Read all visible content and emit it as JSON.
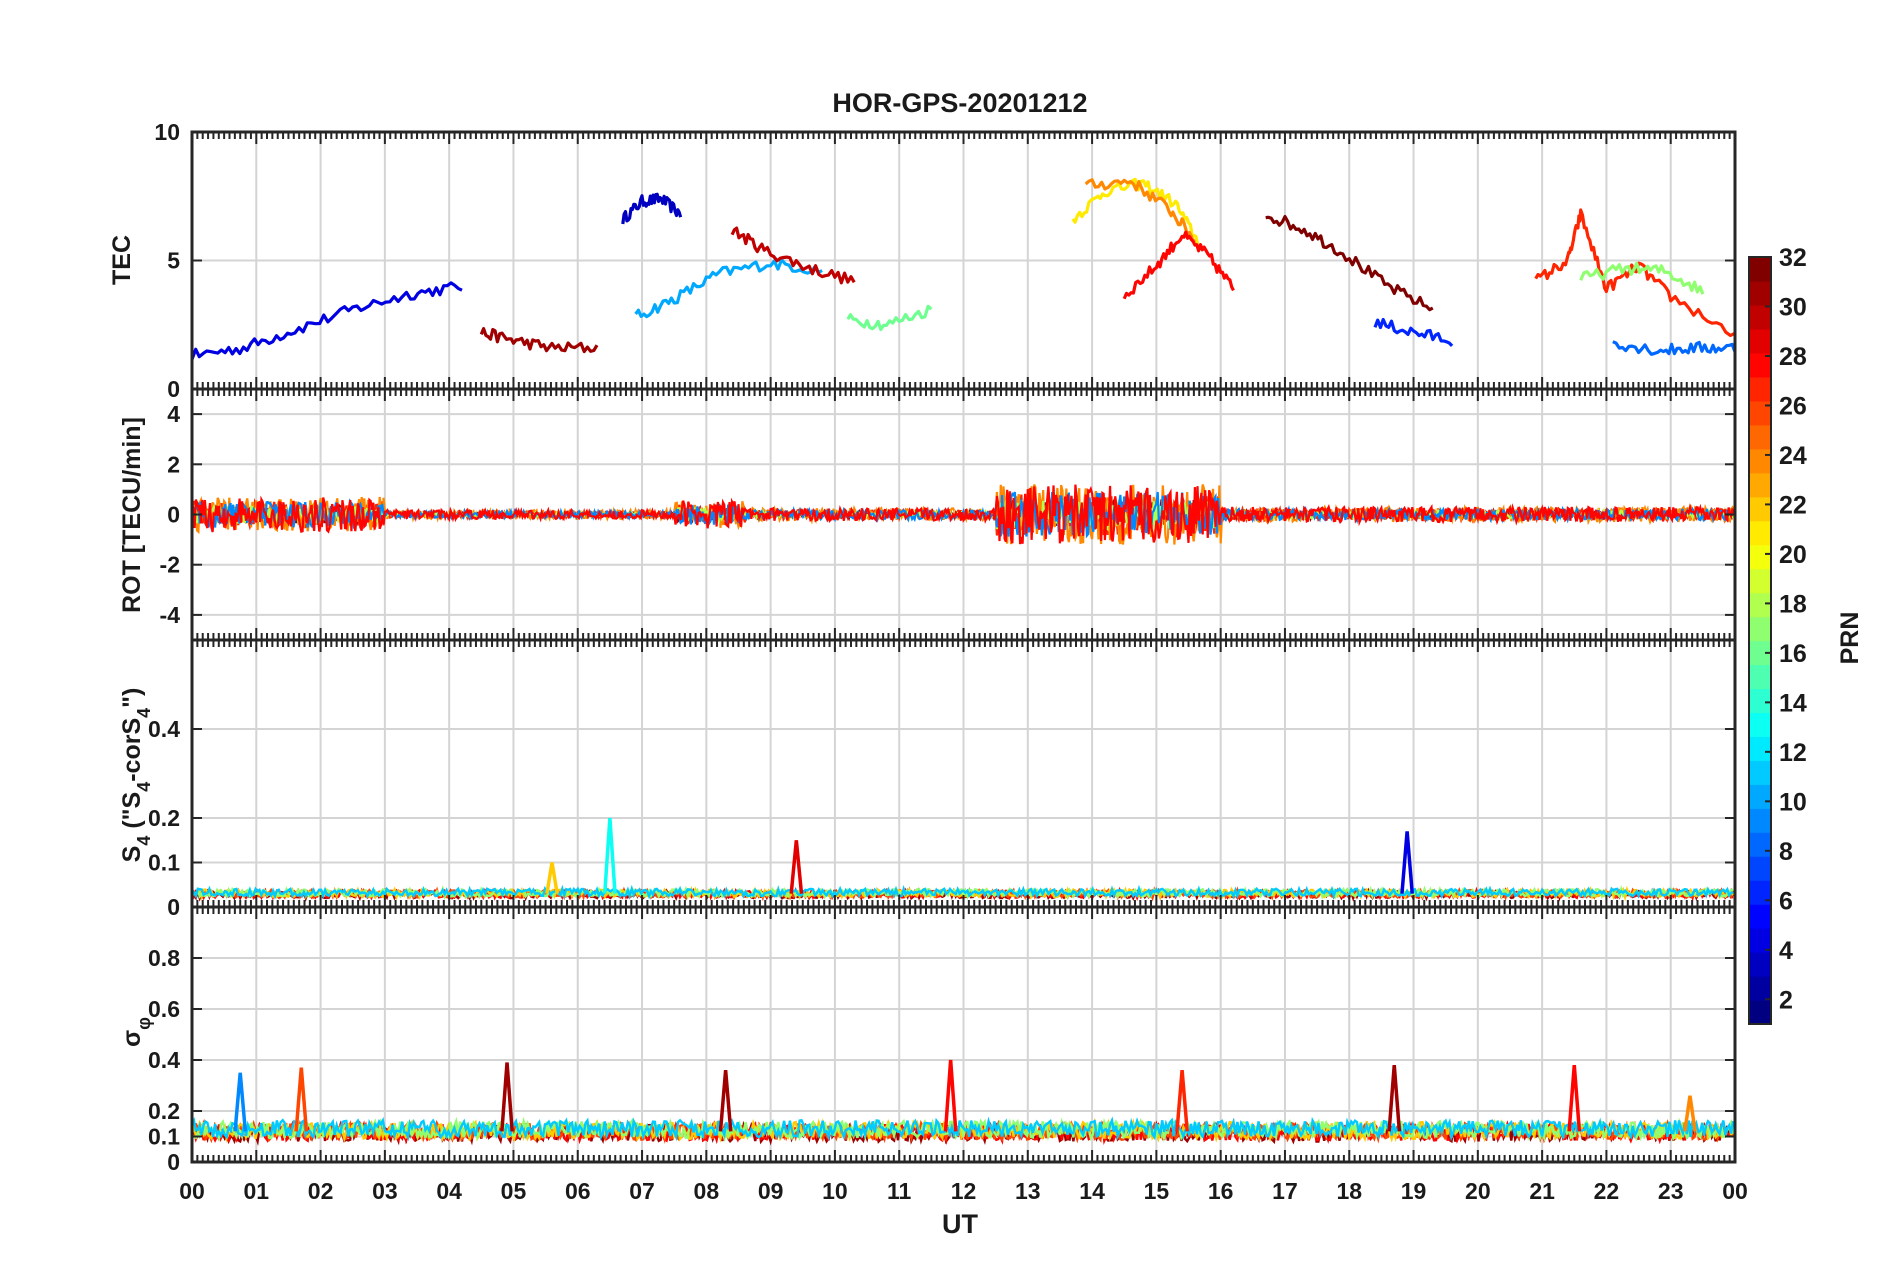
{
  "chart_data": [
    {
      "type": "line",
      "title": "HOR-GPS-20201212",
      "ylabel": "TEC",
      "ylim": [
        0,
        10
      ],
      "yticks": [
        "0",
        "5",
        "10"
      ],
      "grid": true,
      "approx_series": [
        {
          "prn": 3,
          "x": [
            6.7,
            7.0,
            7.3,
            7.6
          ],
          "y": [
            6.6,
            7.3,
            7.4,
            6.8
          ]
        },
        {
          "prn": 4,
          "x": [
            0.0,
            0.8,
            1.6,
            2.5,
            3.4,
            4.2
          ],
          "y": [
            1.3,
            1.6,
            2.3,
            3.1,
            3.7,
            4.0
          ]
        },
        {
          "prn": 10,
          "x": [
            6.9,
            7.5,
            8.2,
            9.0,
            9.8
          ],
          "y": [
            2.8,
            3.5,
            4.5,
            4.9,
            4.6
          ]
        },
        {
          "prn": 31,
          "x": [
            4.5,
            5.0,
            5.6,
            6.3
          ],
          "y": [
            2.2,
            1.9,
            1.6,
            1.6
          ]
        },
        {
          "prn": 30,
          "x": [
            8.4,
            8.9,
            9.6,
            10.3
          ],
          "y": [
            6.2,
            5.4,
            4.7,
            4.2
          ]
        },
        {
          "prn": 16,
          "x": [
            10.2,
            10.8,
            11.5
          ],
          "y": [
            2.7,
            2.5,
            3.1
          ]
        },
        {
          "prn": 21,
          "x": [
            13.7,
            14.2,
            14.8,
            15.3,
            15.7
          ],
          "y": [
            6.6,
            7.7,
            8.0,
            7.2,
            5.5
          ]
        },
        {
          "prn": 24,
          "x": [
            13.9,
            14.6,
            15.2,
            15.6
          ],
          "y": [
            7.9,
            8.1,
            7.0,
            5.8
          ]
        },
        {
          "prn": 28,
          "x": [
            14.5,
            15.0,
            15.4,
            15.8,
            16.2
          ],
          "y": [
            3.6,
            4.8,
            6.0,
            5.2,
            3.9
          ]
        },
        {
          "prn": 32,
          "x": [
            16.7,
            17.3,
            17.9,
            18.6,
            19.3
          ],
          "y": [
            6.8,
            6.2,
            5.3,
            4.0,
            3.1
          ]
        },
        {
          "prn": 6,
          "x": [
            18.4,
            19.0,
            19.6
          ],
          "y": [
            2.6,
            2.2,
            1.9
          ]
        },
        {
          "prn": 27,
          "x": [
            20.9,
            21.4,
            21.6,
            22.0,
            22.5,
            23.0,
            24.0
          ],
          "y": [
            4.2,
            5.0,
            6.8,
            3.9,
            4.8,
            3.6,
            2.1
          ]
        },
        {
          "prn": 17,
          "x": [
            21.6,
            22.3,
            22.9,
            23.5
          ],
          "y": [
            4.3,
            4.7,
            4.6,
            3.8
          ]
        },
        {
          "prn": 8,
          "x": [
            22.1,
            22.8,
            23.4,
            24.0
          ],
          "y": [
            1.8,
            1.5,
            1.6,
            1.6
          ]
        }
      ]
    },
    {
      "type": "line",
      "ylabel": "ROT [TECU/min]",
      "ylim": [
        -5,
        5
      ],
      "yticks": [
        "-4",
        "-2",
        "0",
        "2",
        "4"
      ],
      "grid": true,
      "noise_bands": [
        {
          "x": [
            0.0,
            3.0
          ],
          "amp": 1.4
        },
        {
          "x": [
            3.0,
            7.5
          ],
          "amp": 0.35
        },
        {
          "x": [
            7.5,
            8.6
          ],
          "amp": 1.1
        },
        {
          "x": [
            8.6,
            12.5
          ],
          "amp": 0.5
        },
        {
          "x": [
            12.5,
            16.0
          ],
          "amp": 2.4
        },
        {
          "x": [
            16.0,
            24.0
          ],
          "amp": 0.6
        }
      ]
    },
    {
      "type": "line",
      "ylabel": "S_4 (\"S_4-corS_4\")",
      "ylim": [
        0,
        0.6
      ],
      "yticks": [
        "0",
        "0.1",
        "0.2",
        "0.4"
      ],
      "grid": true,
      "peaks": [
        {
          "prn": 13,
          "x": 6.5,
          "y": 0.2
        },
        {
          "prn": 29,
          "x": 9.4,
          "y": 0.15
        },
        {
          "prn": 4,
          "x": 18.9,
          "y": 0.17
        },
        {
          "prn": 22,
          "x": 5.6,
          "y": 0.1
        }
      ],
      "baseline": 0.03
    },
    {
      "type": "line",
      "ylabel": "σ_φ",
      "ylim": [
        0,
        1
      ],
      "yticks": [
        "0",
        "0.1",
        "0.2",
        "0.4",
        "0.6",
        "0.8"
      ],
      "grid": true,
      "peaks": [
        {
          "prn": 9,
          "x": 0.75,
          "y": 0.35
        },
        {
          "prn": 26,
          "x": 1.7,
          "y": 0.37
        },
        {
          "prn": 31,
          "x": 4.9,
          "y": 0.39
        },
        {
          "prn": 31,
          "x": 8.3,
          "y": 0.36
        },
        {
          "prn": 28,
          "x": 11.8,
          "y": 0.4
        },
        {
          "prn": 27,
          "x": 15.4,
          "y": 0.36
        },
        {
          "prn": 31,
          "x": 18.7,
          "y": 0.38
        },
        {
          "prn": 28,
          "x": 21.5,
          "y": 0.38
        },
        {
          "prn": 24,
          "x": 23.3,
          "y": 0.26
        }
      ],
      "baseline": 0.12
    }
  ],
  "xaxis": {
    "label": "UT",
    "range": [
      0,
      24
    ],
    "ticks": [
      "00",
      "01",
      "02",
      "03",
      "04",
      "05",
      "06",
      "07",
      "08",
      "09",
      "10",
      "11",
      "12",
      "13",
      "14",
      "15",
      "16",
      "17",
      "18",
      "19",
      "20",
      "21",
      "22",
      "23",
      "00"
    ]
  },
  "colorbar": {
    "label": "PRN",
    "range": [
      1,
      32
    ],
    "ticks": [
      "2",
      "4",
      "6",
      "8",
      "10",
      "12",
      "14",
      "16",
      "18",
      "20",
      "22",
      "24",
      "26",
      "28",
      "30",
      "32"
    ],
    "colormap": "jet"
  }
}
